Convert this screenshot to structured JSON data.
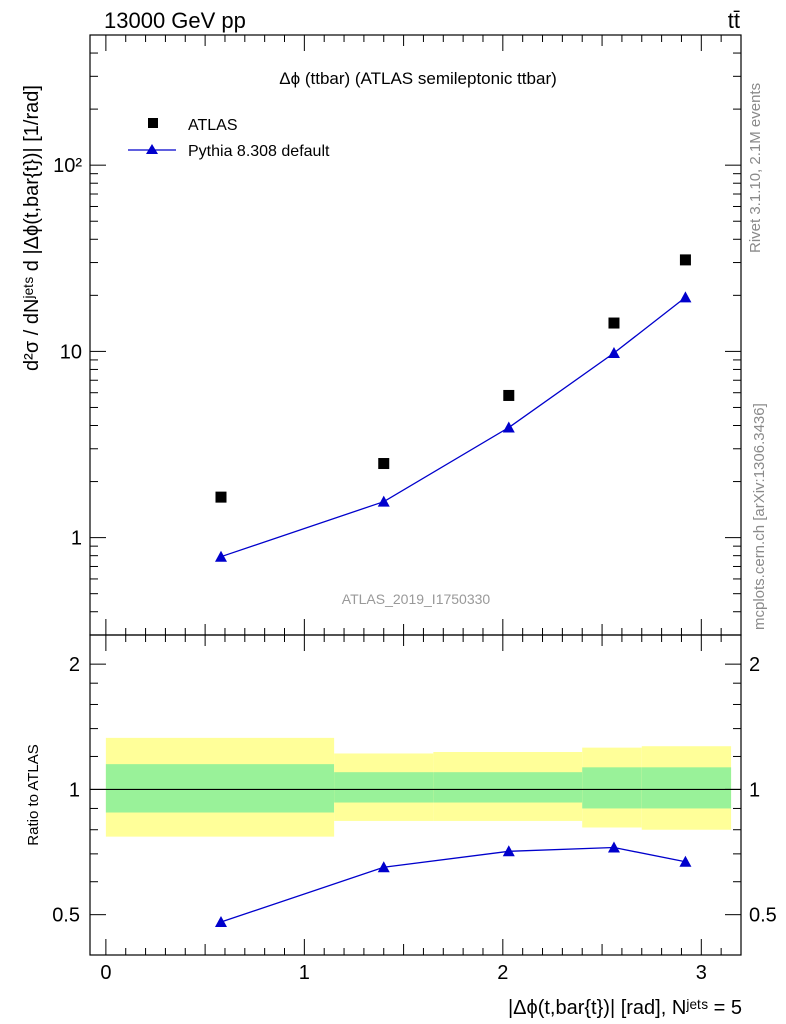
{
  "header": {
    "energy_label": "13000 GeV pp",
    "process_label": "tt̄"
  },
  "side_labels": {
    "rivet": "Rivet 3.1.10,  2.1M events",
    "site": "mcplots.cern.ch [arXiv:1306.3436]"
  },
  "chart_data": [
    {
      "type": "scatter",
      "title": "Δϕ (ttbar) (ATLAS semileptonic ttbar)",
      "ylabel": "d²σ / dNʲᵉᵗˢ d |Δϕ(t,bar{t})| [1/rad]",
      "xlim": [
        -0.08,
        3.2
      ],
      "ylim": [
        0.3,
        500
      ],
      "yscale": "log",
      "ytick_labels": [
        "1",
        "10",
        "10²"
      ],
      "watermark": "ATLAS_2019_I1750330",
      "legend_position": "top-left",
      "series": [
        {
          "name": "ATLAS",
          "marker": "square",
          "color": "#000000",
          "x": [
            0.58,
            1.4,
            2.03,
            2.56,
            2.92
          ],
          "y": [
            1.65,
            2.5,
            5.8,
            14.2,
            31.0
          ]
        },
        {
          "name": "Pythia 8.308 default",
          "marker": "triangle",
          "color": "#0000cc",
          "x": [
            0.58,
            1.4,
            2.03,
            2.56,
            2.92
          ],
          "y": [
            0.79,
            1.56,
            3.9,
            9.8,
            19.5
          ]
        }
      ]
    },
    {
      "type": "line",
      "ylabel": "Ratio to ATLAS",
      "xlabel": "|Δϕ(t,bar{t})| [rad], Nʲᵉᵗˢ = 5",
      "xlim": [
        -0.08,
        3.2
      ],
      "ylim": [
        0.4,
        2.35
      ],
      "yscale": "log",
      "xtick_labels": [
        "0",
        "1",
        "2",
        "3"
      ],
      "ytick_labels": [
        "0.5",
        "1",
        "2"
      ],
      "bands": [
        {
          "x0": 0.0,
          "x1": 1.15,
          "outer": [
            0.77,
            1.33
          ],
          "inner": [
            0.88,
            1.15
          ]
        },
        {
          "x0": 1.15,
          "x1": 1.65,
          "outer": [
            0.84,
            1.22
          ],
          "inner": [
            0.93,
            1.1
          ]
        },
        {
          "x0": 1.65,
          "x1": 2.4,
          "outer": [
            0.84,
            1.23
          ],
          "inner": [
            0.93,
            1.1
          ]
        },
        {
          "x0": 2.4,
          "x1": 2.7,
          "outer": [
            0.81,
            1.26
          ],
          "inner": [
            0.9,
            1.13
          ]
        },
        {
          "x0": 2.7,
          "x1": 3.15,
          "outer": [
            0.8,
            1.27
          ],
          "inner": [
            0.9,
            1.13
          ]
        }
      ],
      "series": [
        {
          "name": "Pythia 8.308 default",
          "color": "#0000cc",
          "x": [
            0.58,
            1.4,
            2.03,
            2.56,
            2.92
          ],
          "y": [
            0.48,
            0.65,
            0.71,
            0.725,
            0.67
          ]
        }
      ]
    }
  ]
}
